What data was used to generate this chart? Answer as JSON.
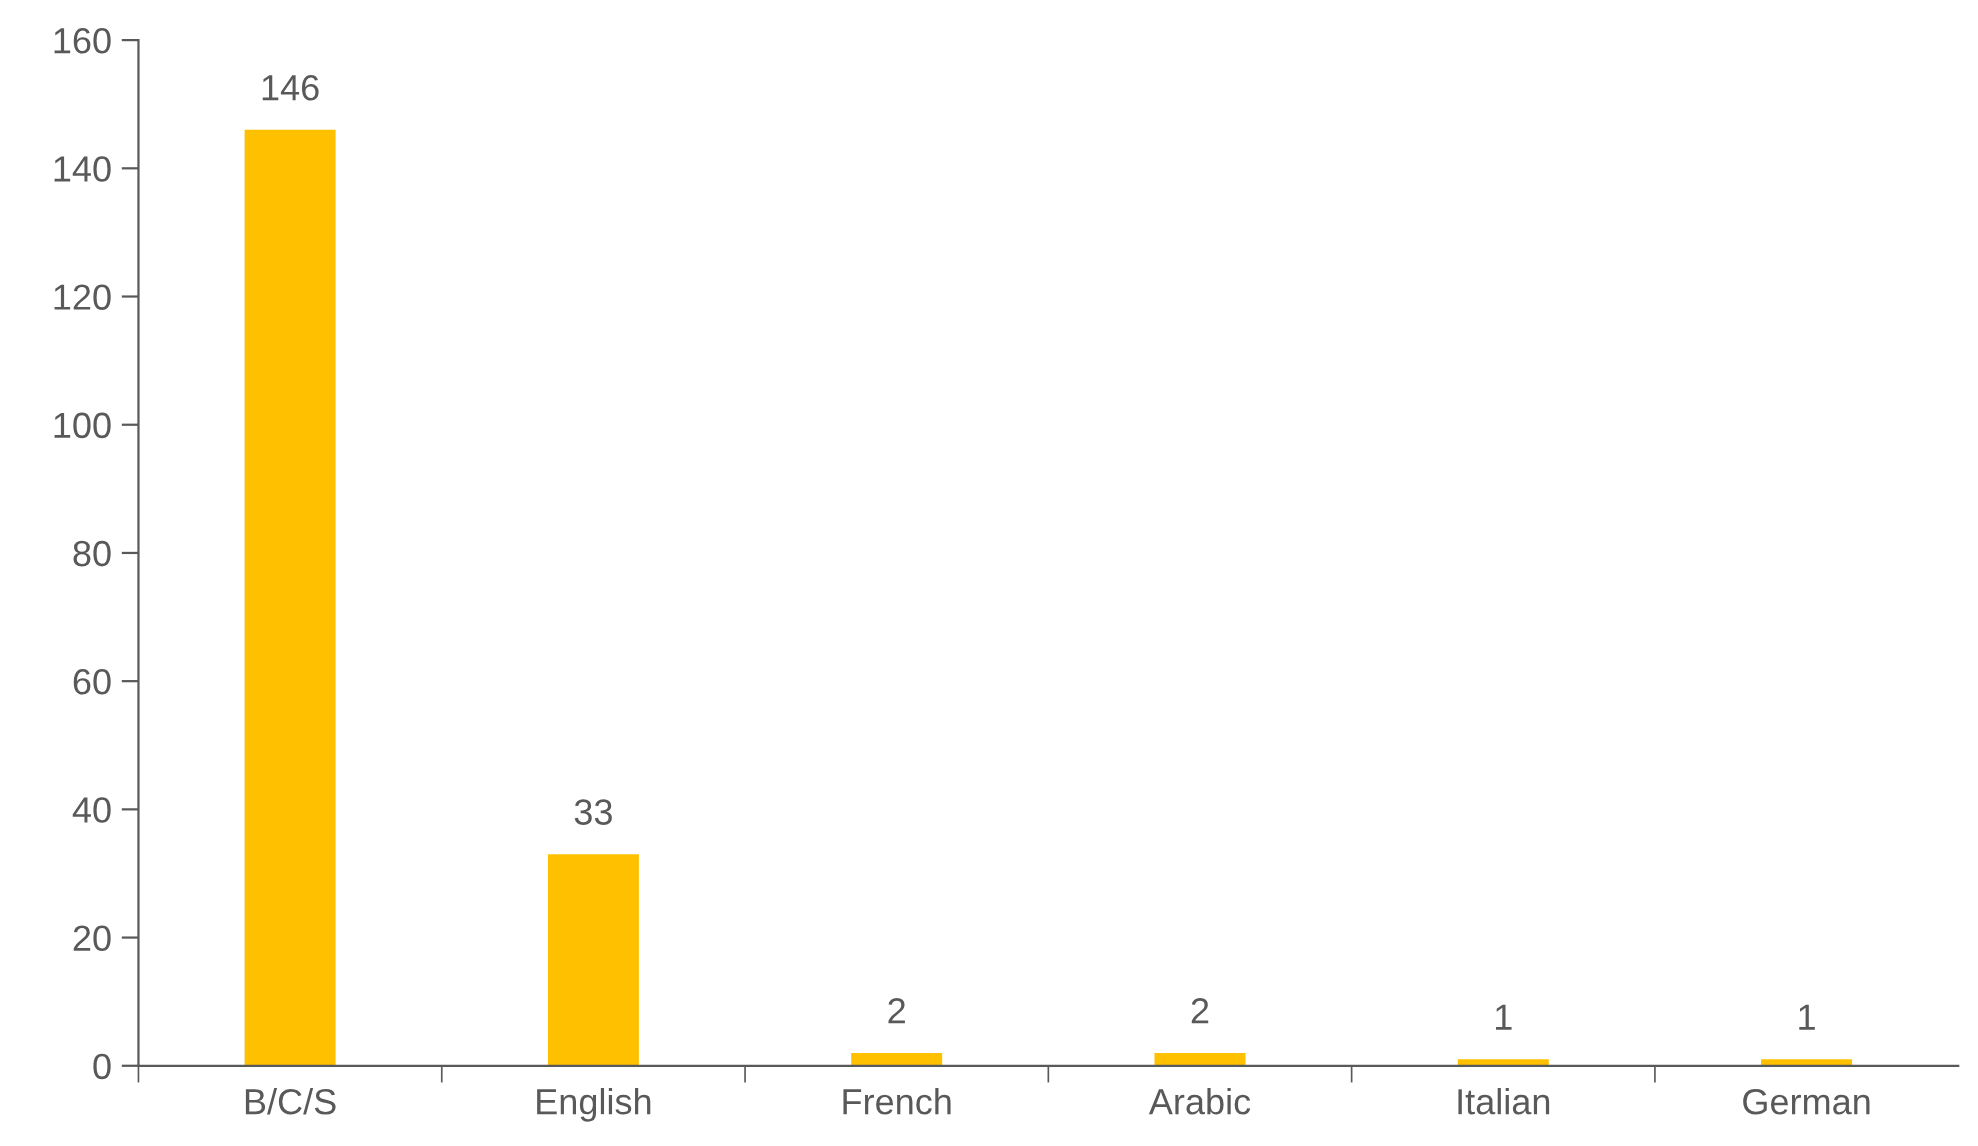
{
  "chart_data": {
    "type": "bar",
    "categories": [
      "B/C/S",
      "English",
      "French",
      "Arabic",
      "Italian",
      "German"
    ],
    "values": [
      146,
      33,
      2,
      2,
      1,
      1
    ],
    "color": "#ffc000",
    "ylim": [
      0,
      160
    ],
    "yticks": [
      0,
      20,
      40,
      60,
      80,
      100,
      120,
      140,
      160
    ],
    "data_labels": true,
    "grid": false,
    "legend": false
  }
}
